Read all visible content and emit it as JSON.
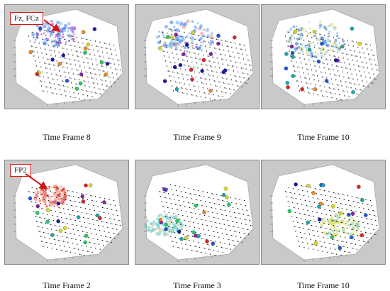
{
  "panels": [
    {
      "caption": "Time Frame 8",
      "callout": "Fz, FCz",
      "hot": "magenta-blue-frontal",
      "seed": 3
    },
    {
      "caption": "Time Frame 9",
      "callout": "",
      "hot": "blue-cloud",
      "seed": 7
    },
    {
      "caption": "Time Frame 10",
      "callout": "",
      "hot": "blue-yellow-cloud",
      "seed": 11
    },
    {
      "caption": "Time Frame 2",
      "callout": "FP2",
      "hot": "red-frontal",
      "seed": 5
    },
    {
      "caption": "Time Frame 3",
      "callout": "",
      "hot": "cyan-left",
      "seed": 9
    },
    {
      "caption": "Time Frame 10",
      "callout": "",
      "hot": "yellow-right",
      "seed": 13
    }
  ],
  "colors": {
    "panel_bg": "#c9c9c9",
    "head_surface": "#ffffff",
    "grid_dot": "#111111",
    "callout_border": "#d01818",
    "electrode_palette": [
      "#1a1aa8",
      "#2255dd",
      "#18a8a8",
      "#22cc66",
      "#d8d820",
      "#ee8820",
      "#dd2222",
      "#8822aa"
    ]
  }
}
